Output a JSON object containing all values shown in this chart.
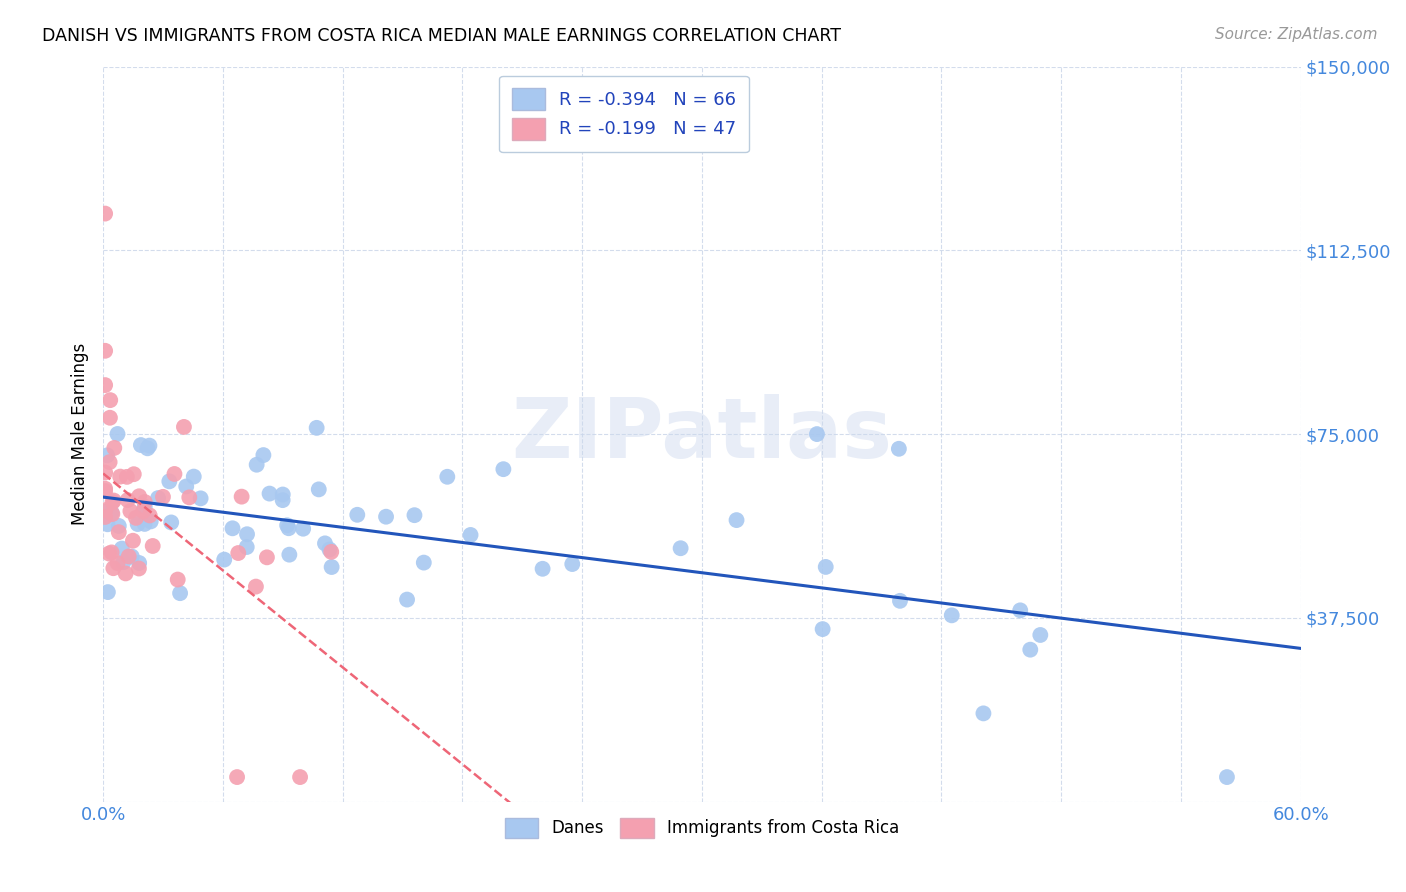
{
  "title": "DANISH VS IMMIGRANTS FROM COSTA RICA MEDIAN MALE EARNINGS CORRELATION CHART",
  "source": "Source: ZipAtlas.com",
  "ylabel": "Median Male Earnings",
  "xlim": [
    0.0,
    0.6
  ],
  "ylim": [
    0,
    150000
  ],
  "danes_color": "#a8c8f0",
  "immigrants_color": "#f4a0b0",
  "danes_line_color": "#2255bb",
  "immigrants_line_color": "#ee6677",
  "danes_R": -0.394,
  "danes_N": 66,
  "immigrants_R": -0.199,
  "immigrants_N": 47,
  "legend_label1": "Danes",
  "legend_label2": "Immigrants from Costa Rica",
  "watermark": "ZIPatlas",
  "background_color": "#ffffff"
}
